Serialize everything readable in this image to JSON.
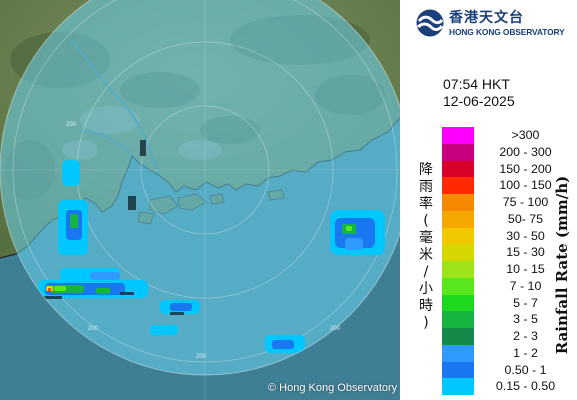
{
  "header": {
    "logo_chinese": "香港天文台",
    "logo_english": "HONG KONG OBSERVATORY"
  },
  "timestamp": {
    "time": "07:54 HKT",
    "date": "12-06-2025"
  },
  "map": {
    "credit": "© Hong Kong Observatory",
    "range_ring_labels": [
      "200",
      "200",
      "200",
      "200"
    ]
  },
  "legend": {
    "title_chinese": "降雨率(毫米/小時)",
    "title_english": "Rainfall Rate (mm/h)",
    "items": [
      {
        "label": ">300",
        "color": "#ff00ff"
      },
      {
        "label": "200 - 300",
        "color": "#c8007e"
      },
      {
        "label": "150 - 200",
        "color": "#d9002a"
      },
      {
        "label": "100 - 150",
        "color": "#ff2a00"
      },
      {
        "label": "75 - 100",
        "color": "#f58a00"
      },
      {
        "label": "50- 75",
        "color": "#f5a800"
      },
      {
        "label": "30 - 50",
        "color": "#f0c800"
      },
      {
        "label": "15 - 30",
        "color": "#d6d600"
      },
      {
        "label": "10 - 15",
        "color": "#9ee31a"
      },
      {
        "label": "7 - 10",
        "color": "#58e61e"
      },
      {
        "label": "5 - 7",
        "color": "#1ed81e"
      },
      {
        "label": "3 - 5",
        "color": "#16b440"
      },
      {
        "label": "2 - 3",
        "color": "#138a4a"
      },
      {
        "label": "1 - 2",
        "color": "#2f9aff"
      },
      {
        "label": "0.50 - 1",
        "color": "#1978ef"
      },
      {
        "label": "0.15 - 0.50",
        "color": "#00c8ff"
      }
    ]
  },
  "colors": {
    "sea": "#4a8fa3",
    "land": "#5f7a52",
    "radar_disc": "#62c7e3"
  }
}
